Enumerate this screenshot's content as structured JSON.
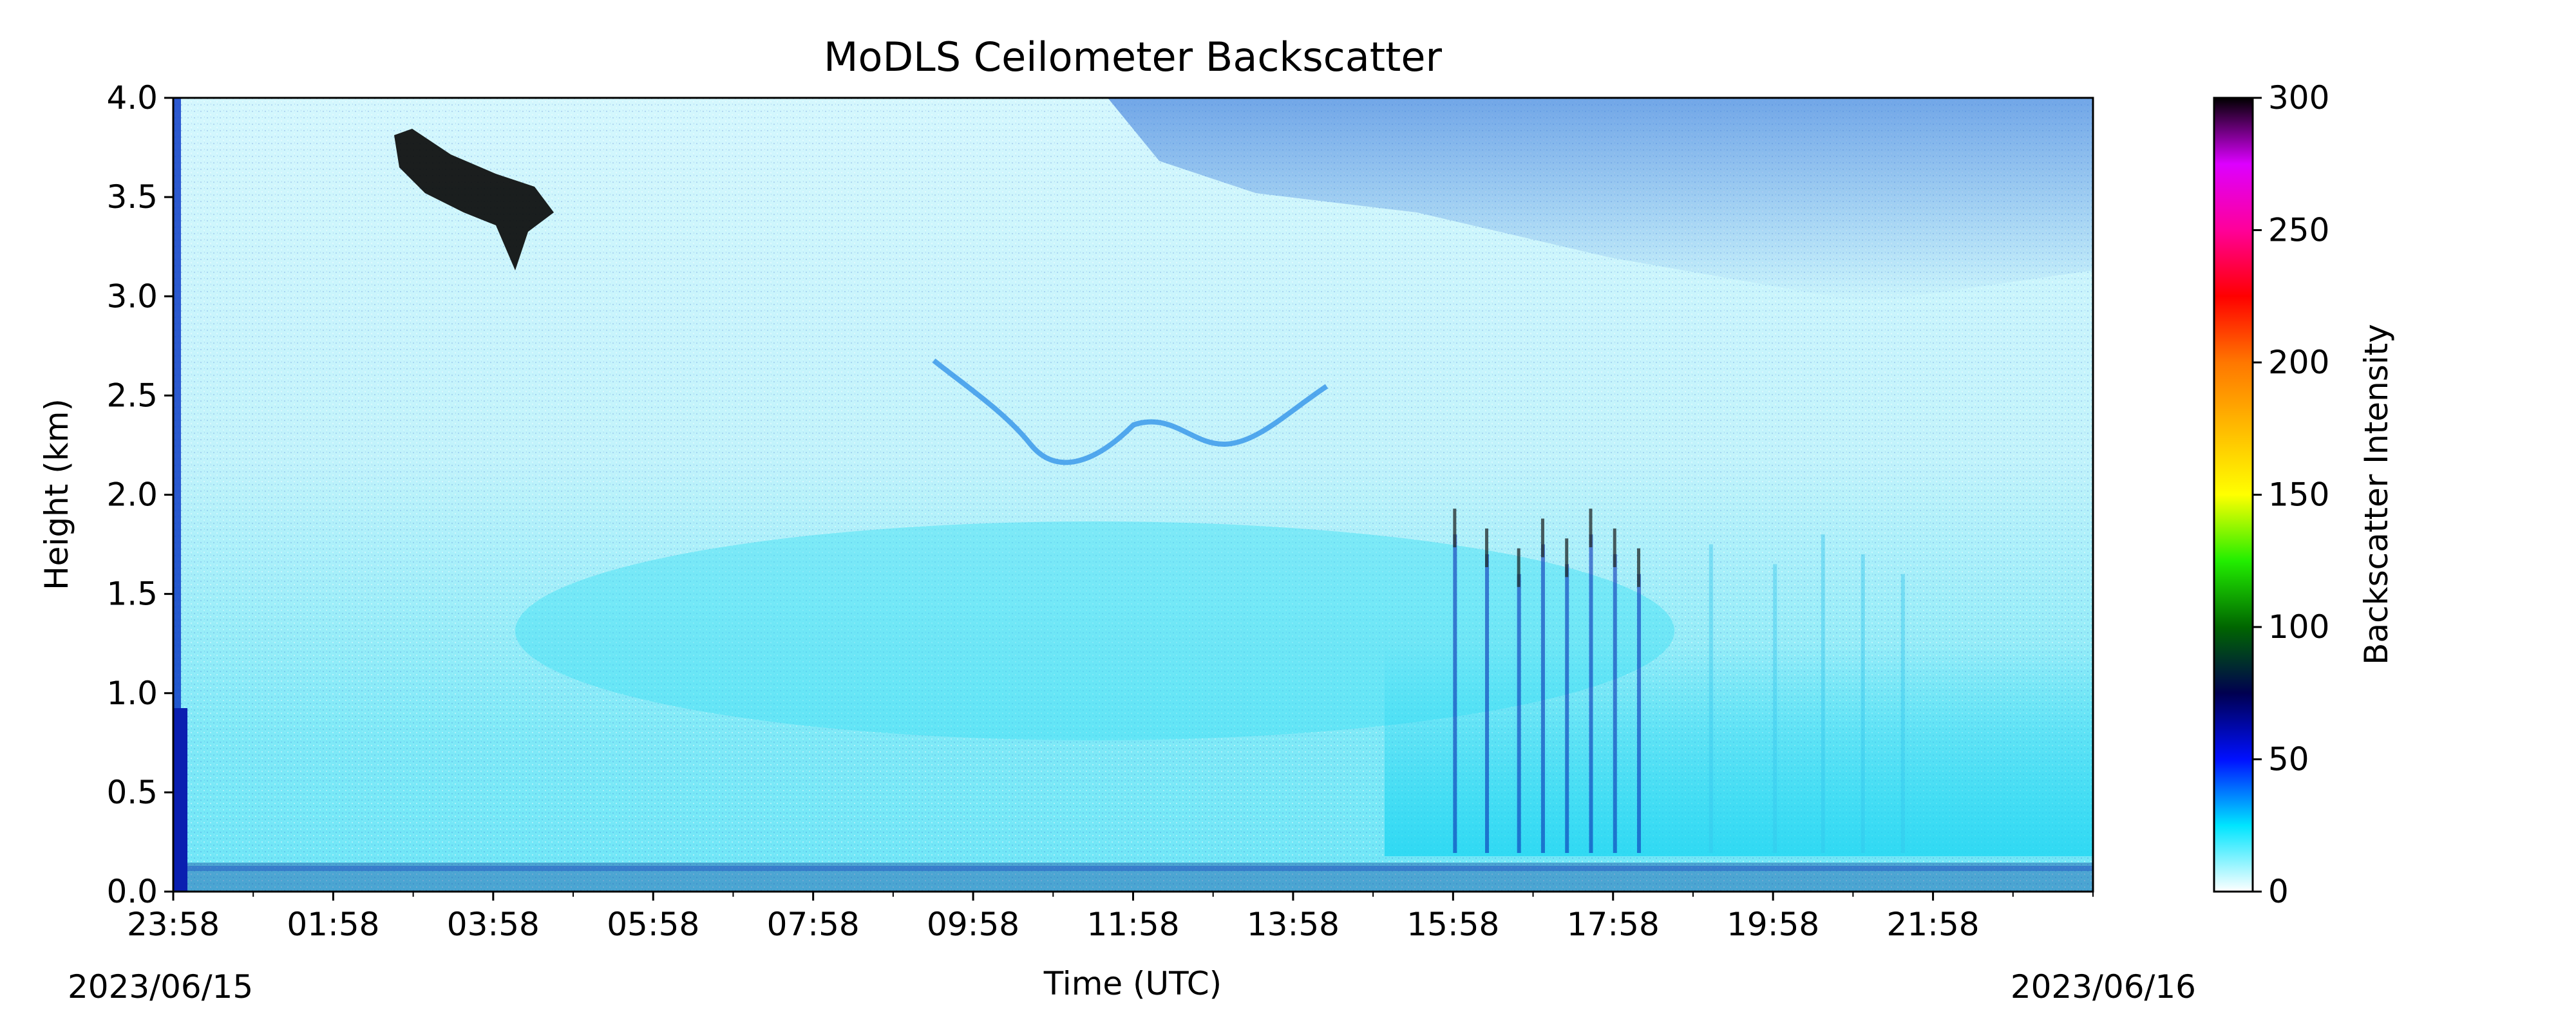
{
  "chart_data": {
    "type": "heatmap",
    "title": "MoDLS Ceilometer Backscatter",
    "xlabel": "Time (UTC)",
    "ylabel": "Height (km)",
    "x_tick_labels": [
      "23:58",
      "01:58",
      "03:58",
      "05:58",
      "07:58",
      "09:58",
      "11:58",
      "13:58",
      "15:58",
      "17:58",
      "19:58",
      "21:58"
    ],
    "x_start_date": "2023/06/15",
    "x_end_date": "2023/06/16",
    "x_range_hours": [
      0,
      24
    ],
    "y_ticks": [
      0.0,
      0.5,
      1.0,
      1.5,
      2.0,
      2.5,
      3.0,
      3.5,
      4.0
    ],
    "y_tick_labels": [
      "0.0",
      "0.5",
      "1.0",
      "1.5",
      "2.0",
      "2.5",
      "3.0",
      "3.5",
      "4.0"
    ],
    "ylim": [
      0,
      4.0
    ],
    "colorbar": {
      "label": "Backscatter Intensity",
      "range": [
        0,
        300
      ],
      "ticks": [
        0,
        50,
        100,
        150,
        200,
        250,
        300
      ],
      "tick_labels": [
        "0",
        "50",
        "100",
        "150",
        "200",
        "250",
        "300"
      ],
      "stops": [
        {
          "value": 0,
          "color": "#ffffff"
        },
        {
          "value": 25,
          "color": "#00e5ff"
        },
        {
          "value": 50,
          "color": "#0010ff"
        },
        {
          "value": 75,
          "color": "#000050"
        },
        {
          "value": 100,
          "color": "#006600"
        },
        {
          "value": 125,
          "color": "#22ee00"
        },
        {
          "value": 150,
          "color": "#ffff00"
        },
        {
          "value": 200,
          "color": "#ff7700"
        },
        {
          "value": 225,
          "color": "#ff0000"
        },
        {
          "value": 250,
          "color": "#ff0099"
        },
        {
          "value": 275,
          "color": "#dd00ff"
        },
        {
          "value": 300,
          "color": "#000000"
        }
      ]
    },
    "grid": false
  }
}
